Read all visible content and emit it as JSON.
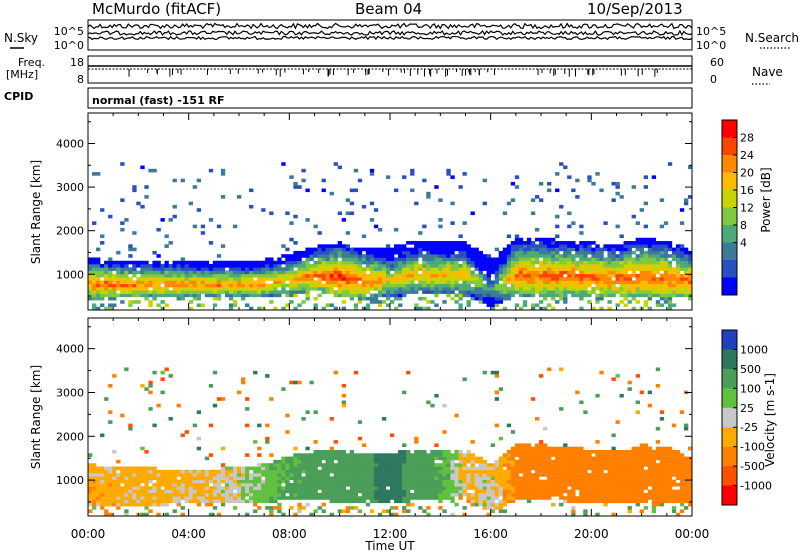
{
  "header": {
    "station": "McMurdo (fitACF)",
    "beam": "Beam 04",
    "date": "10/Sep/2013"
  },
  "top_panels": {
    "nsky_label": "N.Sky",
    "nsearch_label": "N.Search",
    "nsky_ticks": [
      "10^5",
      "10^0"
    ],
    "nsearch_ticks": [
      "10^5",
      "10^0"
    ],
    "freq_label": "Freq.",
    "freq_unit": "[MHz]",
    "freq_ticks": [
      "18",
      "8"
    ],
    "nave_label": "Nave",
    "nave_ticks": [
      "60",
      "0"
    ],
    "cpid_label": "CPID",
    "cpid_text": "normal (fast) -151 RF"
  },
  "colorbars": {
    "power": {
      "label": "Power [dB]",
      "ticks": [
        "28",
        "24",
        "20",
        "16",
        "12",
        "8",
        "4"
      ],
      "colors": [
        "#ff0000",
        "#ff4400",
        "#ff8800",
        "#ffbb00",
        "#c8d400",
        "#80c840",
        "#4caa78",
        "#3c7a9a",
        "#2850c0",
        "#0000ff"
      ]
    },
    "velocity": {
      "label": "Velocity [m s-1]",
      "ticks": [
        "1000",
        "500",
        "100",
        "25",
        "-25",
        "-100",
        "-500",
        "-1000"
      ],
      "colors": [
        "#2040c0",
        "#2e7860",
        "#4a9e58",
        "#60c040",
        "#c8c8c8",
        "#ffaa00",
        "#ff8000",
        "#ff5000",
        "#ff0000"
      ]
    }
  },
  "chart_data": [
    {
      "type": "heatmap",
      "panel": "power",
      "ylabel": "Slant Range [km]",
      "xlabel": "Time UT",
      "x_ticks": [
        "00:00",
        "04:00",
        "08:00",
        "12:00",
        "16:00",
        "20:00",
        "00:00"
      ],
      "y_ticks": [
        1000,
        2000,
        3000,
        4000
      ],
      "xlim": [
        0,
        24
      ],
      "ylim": [
        180,
        4700
      ],
      "units": "dB",
      "band": {
        "hours": [
          0,
          1,
          2,
          3,
          4,
          5,
          6,
          7,
          8,
          9,
          10,
          11,
          12,
          13,
          14,
          15,
          16,
          17,
          18,
          19,
          20,
          21,
          22,
          23,
          24
        ],
        "low_km": [
          500,
          500,
          520,
          520,
          520,
          520,
          520,
          540,
          600,
          680,
          560,
          480,
          520,
          620,
          640,
          650,
          300,
          580,
          560,
          560,
          540,
          520,
          520,
          500,
          520
        ],
        "high_km": [
          1300,
          1250,
          1250,
          1250,
          1250,
          1200,
          1200,
          1250,
          1400,
          1550,
          1650,
          1500,
          1550,
          1700,
          1650,
          1650,
          1300,
          1750,
          1750,
          1700,
          1650,
          1600,
          1750,
          1700,
          1450
        ],
        "peak_db": [
          26,
          26,
          25,
          25,
          24,
          24,
          24,
          24,
          22,
          26,
          28,
          26,
          20,
          22,
          22,
          22,
          12,
          26,
          26,
          26,
          26,
          26,
          26,
          26,
          26
        ]
      },
      "scatter_top_km": 3600
    },
    {
      "type": "heatmap",
      "panel": "velocity",
      "ylabel": "Slant Range [km]",
      "xlabel": "Time UT",
      "x_ticks": [
        "00:00",
        "04:00",
        "08:00",
        "12:00",
        "16:00",
        "20:00",
        "00:00"
      ],
      "y_ticks": [
        1000,
        2000,
        3000,
        4000
      ],
      "xlim": [
        0,
        24
      ],
      "ylim": [
        180,
        4700
      ],
      "units": "m s-1",
      "band": {
        "hours": [
          0,
          1,
          2,
          3,
          4,
          5,
          6,
          7,
          8,
          9,
          10,
          11,
          12,
          13,
          14,
          15,
          16,
          17,
          18,
          19,
          20,
          21,
          22,
          23,
          24
        ],
        "low_km": [
          450,
          450,
          480,
          480,
          500,
          500,
          520,
          540,
          600,
          620,
          520,
          480,
          500,
          600,
          620,
          650,
          300,
          560,
          560,
          560,
          540,
          520,
          520,
          520,
          540
        ],
        "high_km": [
          1300,
          1250,
          1250,
          1200,
          1200,
          1200,
          1250,
          1300,
          1500,
          1600,
          1650,
          1550,
          1550,
          1650,
          1650,
          1650,
          1300,
          1750,
          1750,
          1700,
          1650,
          1600,
          1750,
          1700,
          1450
        ],
        "vel_ms": [
          -60,
          -60,
          -50,
          -50,
          -40,
          -30,
          0,
          60,
          120,
          150,
          300,
          250,
          900,
          200,
          120,
          -30,
          0,
          -150,
          -200,
          -200,
          -180,
          -180,
          -170,
          -160,
          -150
        ]
      },
      "scatter_top_km": 3600
    }
  ]
}
